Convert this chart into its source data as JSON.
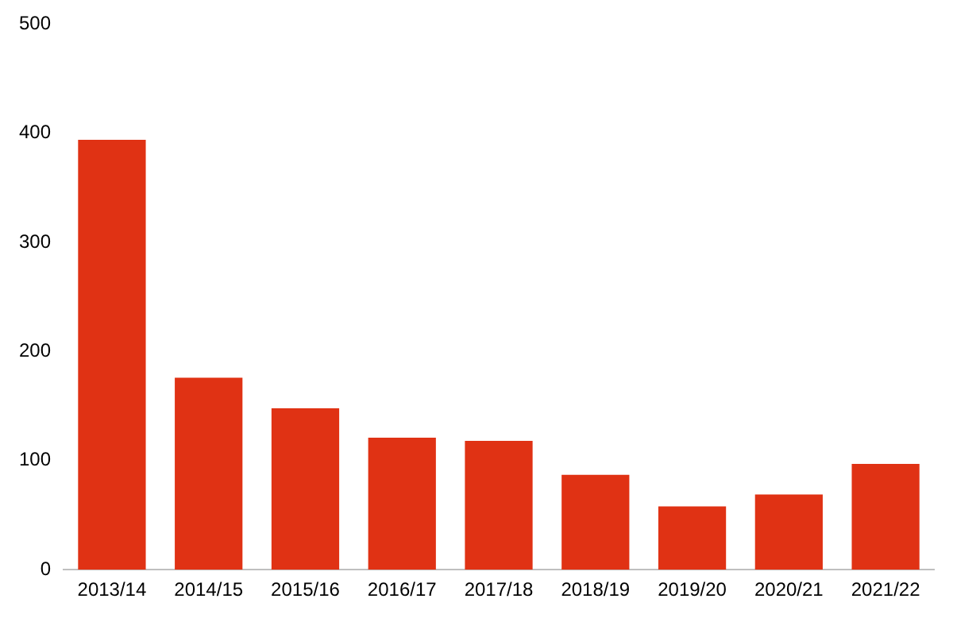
{
  "chart_data": {
    "type": "bar",
    "categories": [
      "2013/14",
      "2014/15",
      "2015/16",
      "2016/17",
      "2017/18",
      "2018/19",
      "2019/20",
      "2020/21",
      "2021/22"
    ],
    "values": [
      394,
      176,
      148,
      121,
      118,
      87,
      58,
      69,
      97
    ],
    "color": "#e03214",
    "ylim": [
      0,
      500
    ],
    "yticks": [
      0,
      100,
      200,
      300,
      400,
      500
    ],
    "grid": false,
    "legend": false
  }
}
